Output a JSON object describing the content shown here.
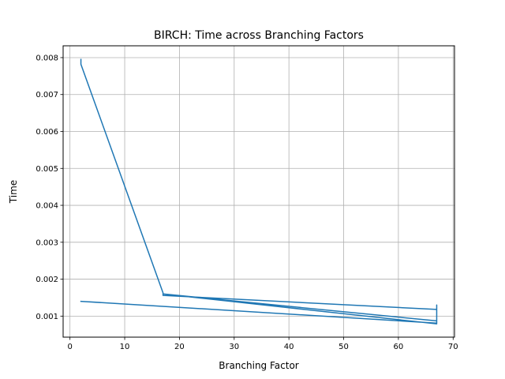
{
  "chart_data": {
    "type": "line",
    "title": "BIRCH: Time across Branching Factors",
    "xlabel": "Branching Factor",
    "ylabel": "Time",
    "xlim": [
      -1.25,
      70.25
    ],
    "ylim": [
      0.00043,
      0.00832
    ],
    "xticks": [
      0,
      10,
      20,
      30,
      40,
      50,
      60,
      70
    ],
    "xtick_labels": [
      "0",
      "10",
      "20",
      "30",
      "40",
      "50",
      "60",
      "70"
    ],
    "yticks": [
      0.001,
      0.002,
      0.003,
      0.004,
      0.005,
      0.006,
      0.007,
      0.008
    ],
    "ytick_labels": [
      "0.001",
      "0.002",
      "0.003",
      "0.004",
      "0.005",
      "0.006",
      "0.007",
      "0.008"
    ],
    "grid": true,
    "color": "#1f77b4",
    "series": [
      {
        "x": [
          2,
          2,
          2,
          17,
          17,
          67,
          67,
          67,
          67,
          17,
          67,
          67,
          67,
          67,
          2
        ],
        "y": [
          0.00795,
          0.00785,
          0.00782,
          0.00163,
          0.00156,
          0.00118,
          0.00127,
          0.00108,
          0.00087,
          0.0016,
          0.00079,
          0.00082,
          0.0013,
          0.00081,
          0.0014
        ]
      }
    ]
  }
}
